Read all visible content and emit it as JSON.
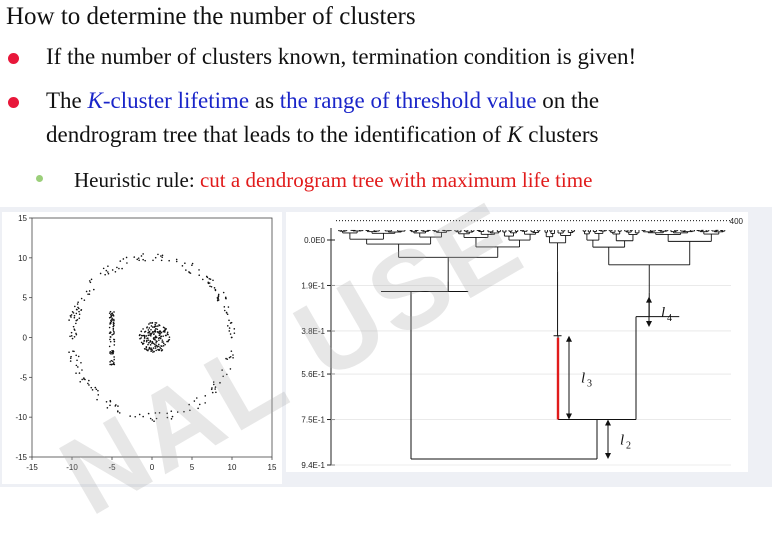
{
  "slide": {
    "title": "How to determine the number of clusters",
    "bullet1": "If the number of clusters known, termination condition is given!",
    "bullet2": {
      "t1": "The ",
      "k1": "K",
      "t2": "-cluster lifetime",
      "t3": " as ",
      "t4": "the range of threshold value",
      "t5": " on the",
      "line2a": "dendrogram tree that leads to the identification of ",
      "k2": "K",
      "line2b": " clusters"
    },
    "sub1": {
      "label": "Heuristic rule: ",
      "rule": "cut a dendrogram tree with maximum life time"
    },
    "watermark": "NAL USE"
  },
  "scatter": {
    "x_ticks": [
      "-15",
      "-10",
      "-5",
      "0",
      "5",
      "10",
      "15"
    ],
    "y_ticks": [
      "15",
      "10",
      "5",
      "0",
      "-5",
      "-10",
      "-15"
    ]
  },
  "dendrogram": {
    "y_ticks": [
      "0.0E0",
      "1.9E-1",
      "3.8E-1",
      "5.6E-1",
      "7.5E-1",
      "9.4E-1"
    ],
    "top_label": "400",
    "lifetimes": [
      {
        "main": "l",
        "sub": "4"
      },
      {
        "main": "l",
        "sub": "3"
      },
      {
        "main": "l",
        "sub": "2"
      }
    ],
    "colors": {
      "highlight": "#e11b1b"
    }
  },
  "chart_data": [
    {
      "type": "scatter",
      "xlim": [
        -15,
        15
      ],
      "ylim": [
        -15,
        15
      ],
      "series": [
        {
          "values_description_skipped": true,
          "x": [
            0,
            7.8,
            -7.8,
            0,
            5.5,
            -5.5,
            5.5,
            -5.5,
            -5,
            -5,
            -5,
            0,
            1,
            -1,
            0.5,
            -0.5
          ],
          "y": [
            8.5,
            0,
            0,
            -8.5,
            6,
            6,
            -6,
            -6,
            2,
            0,
            -2,
            0,
            0.5,
            -0.5,
            -0.8,
            0.8
          ]
        }
      ]
    },
    {
      "type": "line",
      "y_ticks": [
        0.0,
        0.19,
        0.38,
        0.56,
        0.75,
        0.94
      ],
      "ylim": [
        0.94,
        0.0
      ]
    }
  ]
}
